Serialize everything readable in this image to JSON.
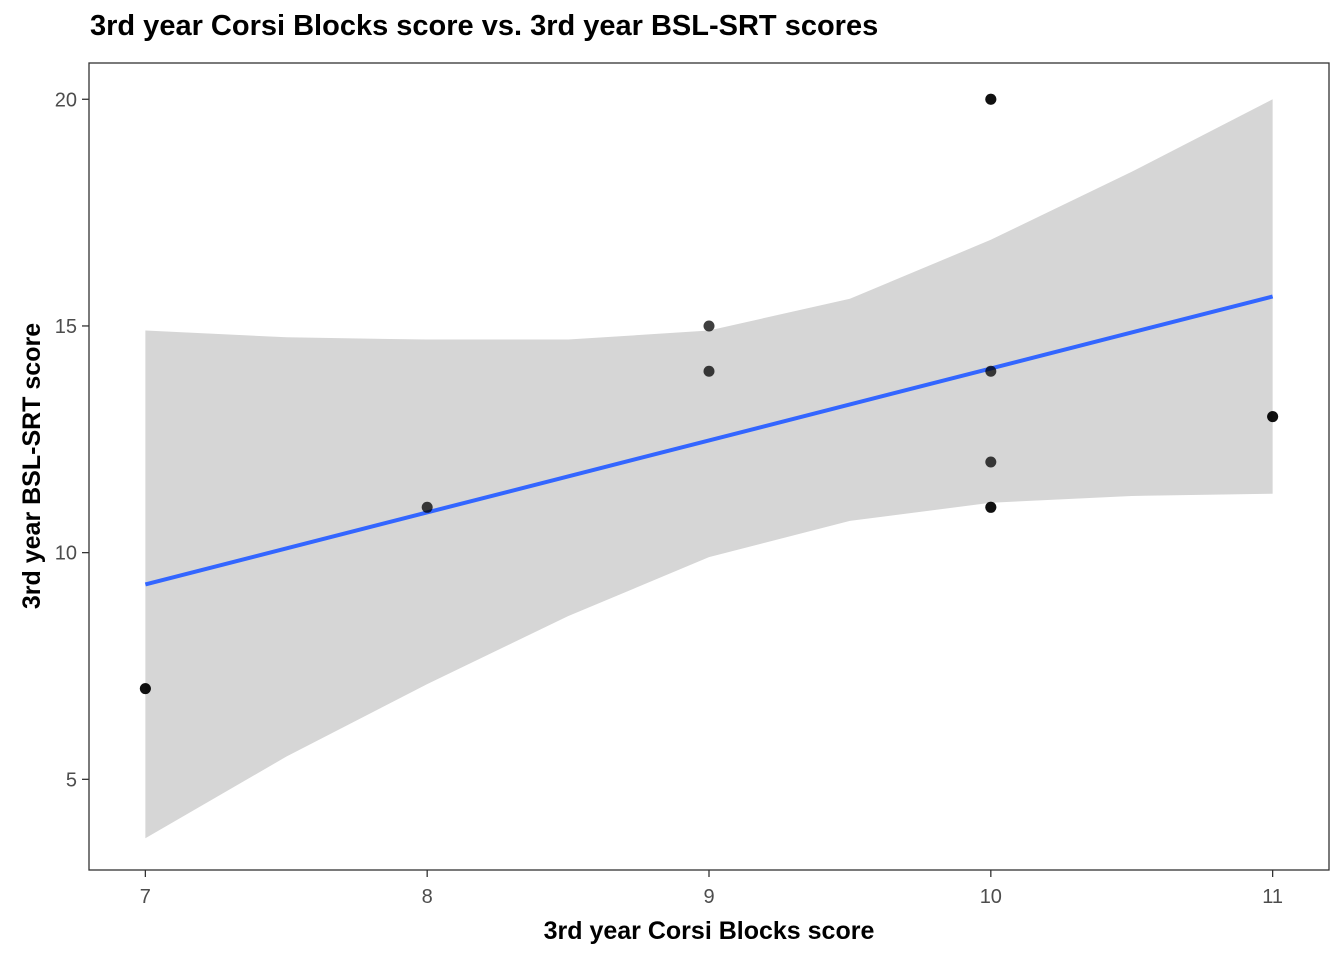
{
  "chart_data": {
    "type": "scatter",
    "title": "3rd year Corsi Blocks score vs. 3rd year BSL-SRT scores",
    "xlabel": "3rd year Corsi Blocks score",
    "ylabel": "3rd year BSL-SRT score",
    "xlim": [
      6.8,
      11.2
    ],
    "ylim": [
      3.0,
      20.8
    ],
    "x_ticks": [
      7,
      8,
      9,
      10,
      11
    ],
    "y_ticks": [
      5,
      10,
      15,
      20
    ],
    "grid": false,
    "legend": "none",
    "points": [
      {
        "x": 7,
        "y": 7
      },
      {
        "x": 7,
        "y": 7
      },
      {
        "x": 8,
        "y": 11
      },
      {
        "x": 9,
        "y": 15
      },
      {
        "x": 9,
        "y": 14
      },
      {
        "x": 10,
        "y": 20
      },
      {
        "x": 10,
        "y": 20
      },
      {
        "x": 10,
        "y": 14
      },
      {
        "x": 10,
        "y": 12
      },
      {
        "x": 10,
        "y": 11
      },
      {
        "x": 10,
        "y": 11
      },
      {
        "x": 11,
        "y": 13
      },
      {
        "x": 11,
        "y": 13
      }
    ],
    "regression": {
      "method": "lm",
      "line": [
        [
          7,
          9.3
        ],
        [
          11,
          15.65
        ]
      ],
      "ci_band": [
        {
          "x": 7,
          "lower": 3.7,
          "upper": 14.9
        },
        {
          "x": 7.5,
          "lower": 5.5,
          "upper": 14.75
        },
        {
          "x": 8,
          "lower": 7.1,
          "upper": 14.7
        },
        {
          "x": 8.5,
          "lower": 8.6,
          "upper": 14.7
        },
        {
          "x": 9,
          "lower": 9.9,
          "upper": 14.9
        },
        {
          "x": 9.5,
          "lower": 10.7,
          "upper": 15.6
        },
        {
          "x": 10,
          "lower": 11.1,
          "upper": 16.9
        },
        {
          "x": 10.5,
          "lower": 11.25,
          "upper": 18.4
        },
        {
          "x": 11,
          "lower": 11.3,
          "upper": 20.0
        }
      ],
      "line_color": "#3366ff",
      "band_color": "#d6d6d6"
    },
    "point_color": "#000000"
  }
}
